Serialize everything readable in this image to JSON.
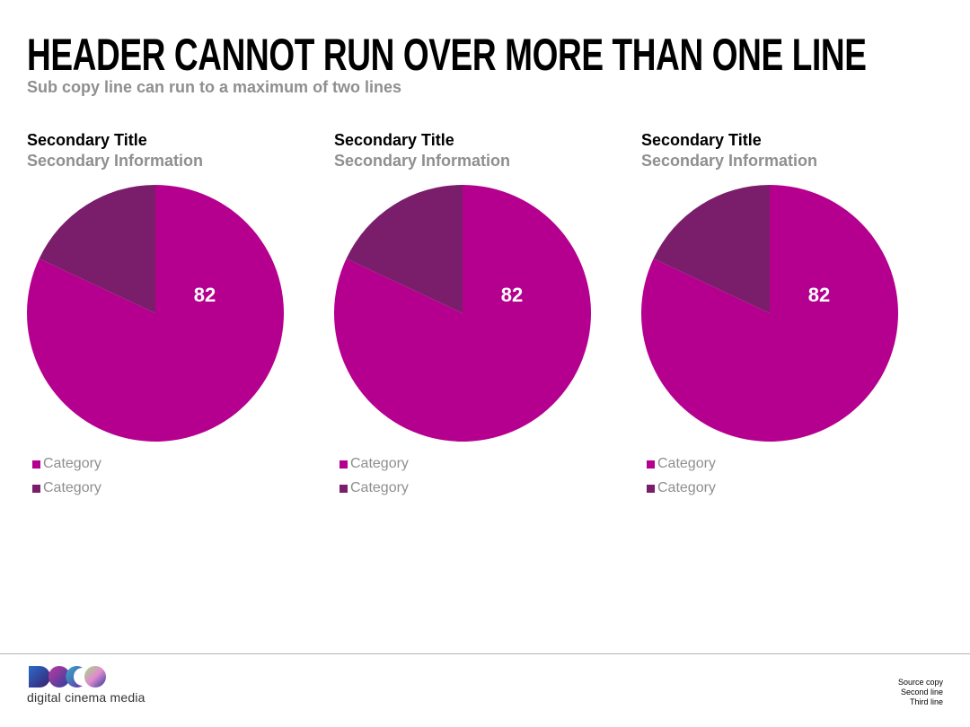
{
  "header": {
    "title": "HEADER CANNOT RUN OVER MORE THAN ONE LINE",
    "subcopy": "Sub copy line can run to a maximum of two lines"
  },
  "colors": {
    "primary": "#b5008f",
    "secondary": "#7a1e6b",
    "grey_text": "#8f8f8f"
  },
  "chart_data": [
    {
      "type": "pie",
      "title": "Secondary Title",
      "subtitle": "Secondary Information",
      "categories": [
        "Category",
        "Category"
      ],
      "values": [
        82,
        18
      ],
      "colors": [
        "#b5008f",
        "#7a1e6b"
      ],
      "data_labels": [
        "82",
        ""
      ],
      "legend": "bottom-left"
    },
    {
      "type": "pie",
      "title": "Secondary Title",
      "subtitle": "Secondary Information",
      "categories": [
        "Category",
        "Category"
      ],
      "values": [
        82,
        18
      ],
      "colors": [
        "#b5008f",
        "#7a1e6b"
      ],
      "data_labels": [
        "82",
        ""
      ],
      "legend": "bottom-left"
    },
    {
      "type": "pie",
      "title": "Secondary Title",
      "subtitle": "Secondary Information",
      "categories": [
        "Category",
        "Category"
      ],
      "values": [
        82,
        18
      ],
      "colors": [
        "#b5008f",
        "#7a1e6b"
      ],
      "data_labels": [
        "82",
        ""
      ],
      "legend": "bottom-left"
    }
  ],
  "footer": {
    "logo_text": "digital cinema media",
    "source_lines": [
      "Source copy",
      "Second line",
      "Third line"
    ]
  }
}
